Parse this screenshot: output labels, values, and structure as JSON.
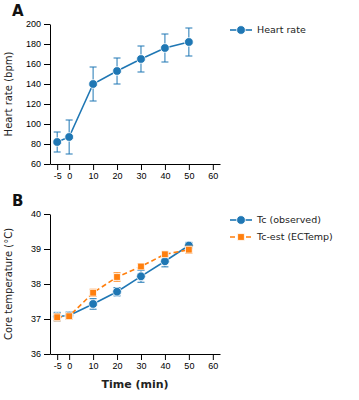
{
  "chart_data": [
    {
      "type": "line",
      "title": "A",
      "y_label": "Heart rate (bpm)",
      "x": [
        -5,
        0,
        10,
        20,
        30,
        40,
        50
      ],
      "series": [
        {
          "name": "Heart rate",
          "values": [
            82,
            87,
            140,
            153,
            165,
            176,
            182
          ],
          "errors": [
            10,
            17,
            17,
            13,
            13,
            14,
            14
          ],
          "marker": "circle",
          "line_style": "solid"
        }
      ],
      "xlim": [
        -8,
        63
      ],
      "xticks": [
        -5,
        0,
        10,
        20,
        30,
        40,
        50,
        60
      ],
      "ylim": [
        60,
        200
      ],
      "yticks": [
        60,
        80,
        100,
        120,
        140,
        160,
        180,
        200
      ],
      "grid": false,
      "legend": "right"
    },
    {
      "type": "line",
      "title": "B",
      "x_label": "Time (min)",
      "y_label": "Core temperature (°C)",
      "x": [
        -5,
        0,
        10,
        20,
        30,
        40,
        50
      ],
      "series": [
        {
          "name": "Tc (observed)",
          "values": [
            37.07,
            37.1,
            37.43,
            37.78,
            38.22,
            38.65,
            39.1
          ],
          "errors": [
            0.12,
            0.1,
            0.15,
            0.12,
            0.17,
            0.16,
            0.09
          ],
          "marker": "circle",
          "line_style": "solid"
        },
        {
          "name": "Tc-est (ECTemp)",
          "values": [
            37.05,
            37.08,
            37.75,
            38.2,
            38.5,
            38.85,
            38.98
          ],
          "errors": [
            0.1,
            0.08,
            0.1,
            0.12,
            0.08,
            0.07,
            0.1
          ],
          "marker": "square",
          "line_style": "dashed"
        }
      ],
      "xlim": [
        -8,
        63
      ],
      "xticks": [
        -5,
        0,
        10,
        20,
        30,
        40,
        50,
        60
      ],
      "ylim": [
        36,
        40
      ],
      "yticks": [
        36,
        37,
        38,
        39,
        40
      ],
      "grid": false,
      "legend": "right"
    }
  ]
}
